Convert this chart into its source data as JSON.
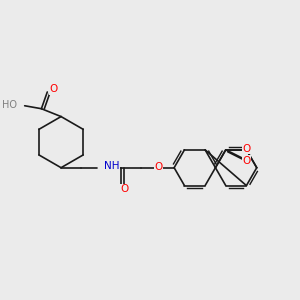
{
  "background_color": "#ebebeb",
  "bond_color": "#1a1a1a",
  "atom_colors": {
    "O": "#ff0000",
    "N": "#0000cc",
    "H": "#808080",
    "C": "#1a1a1a"
  },
  "font_size": 7.5,
  "bond_width": 1.2
}
